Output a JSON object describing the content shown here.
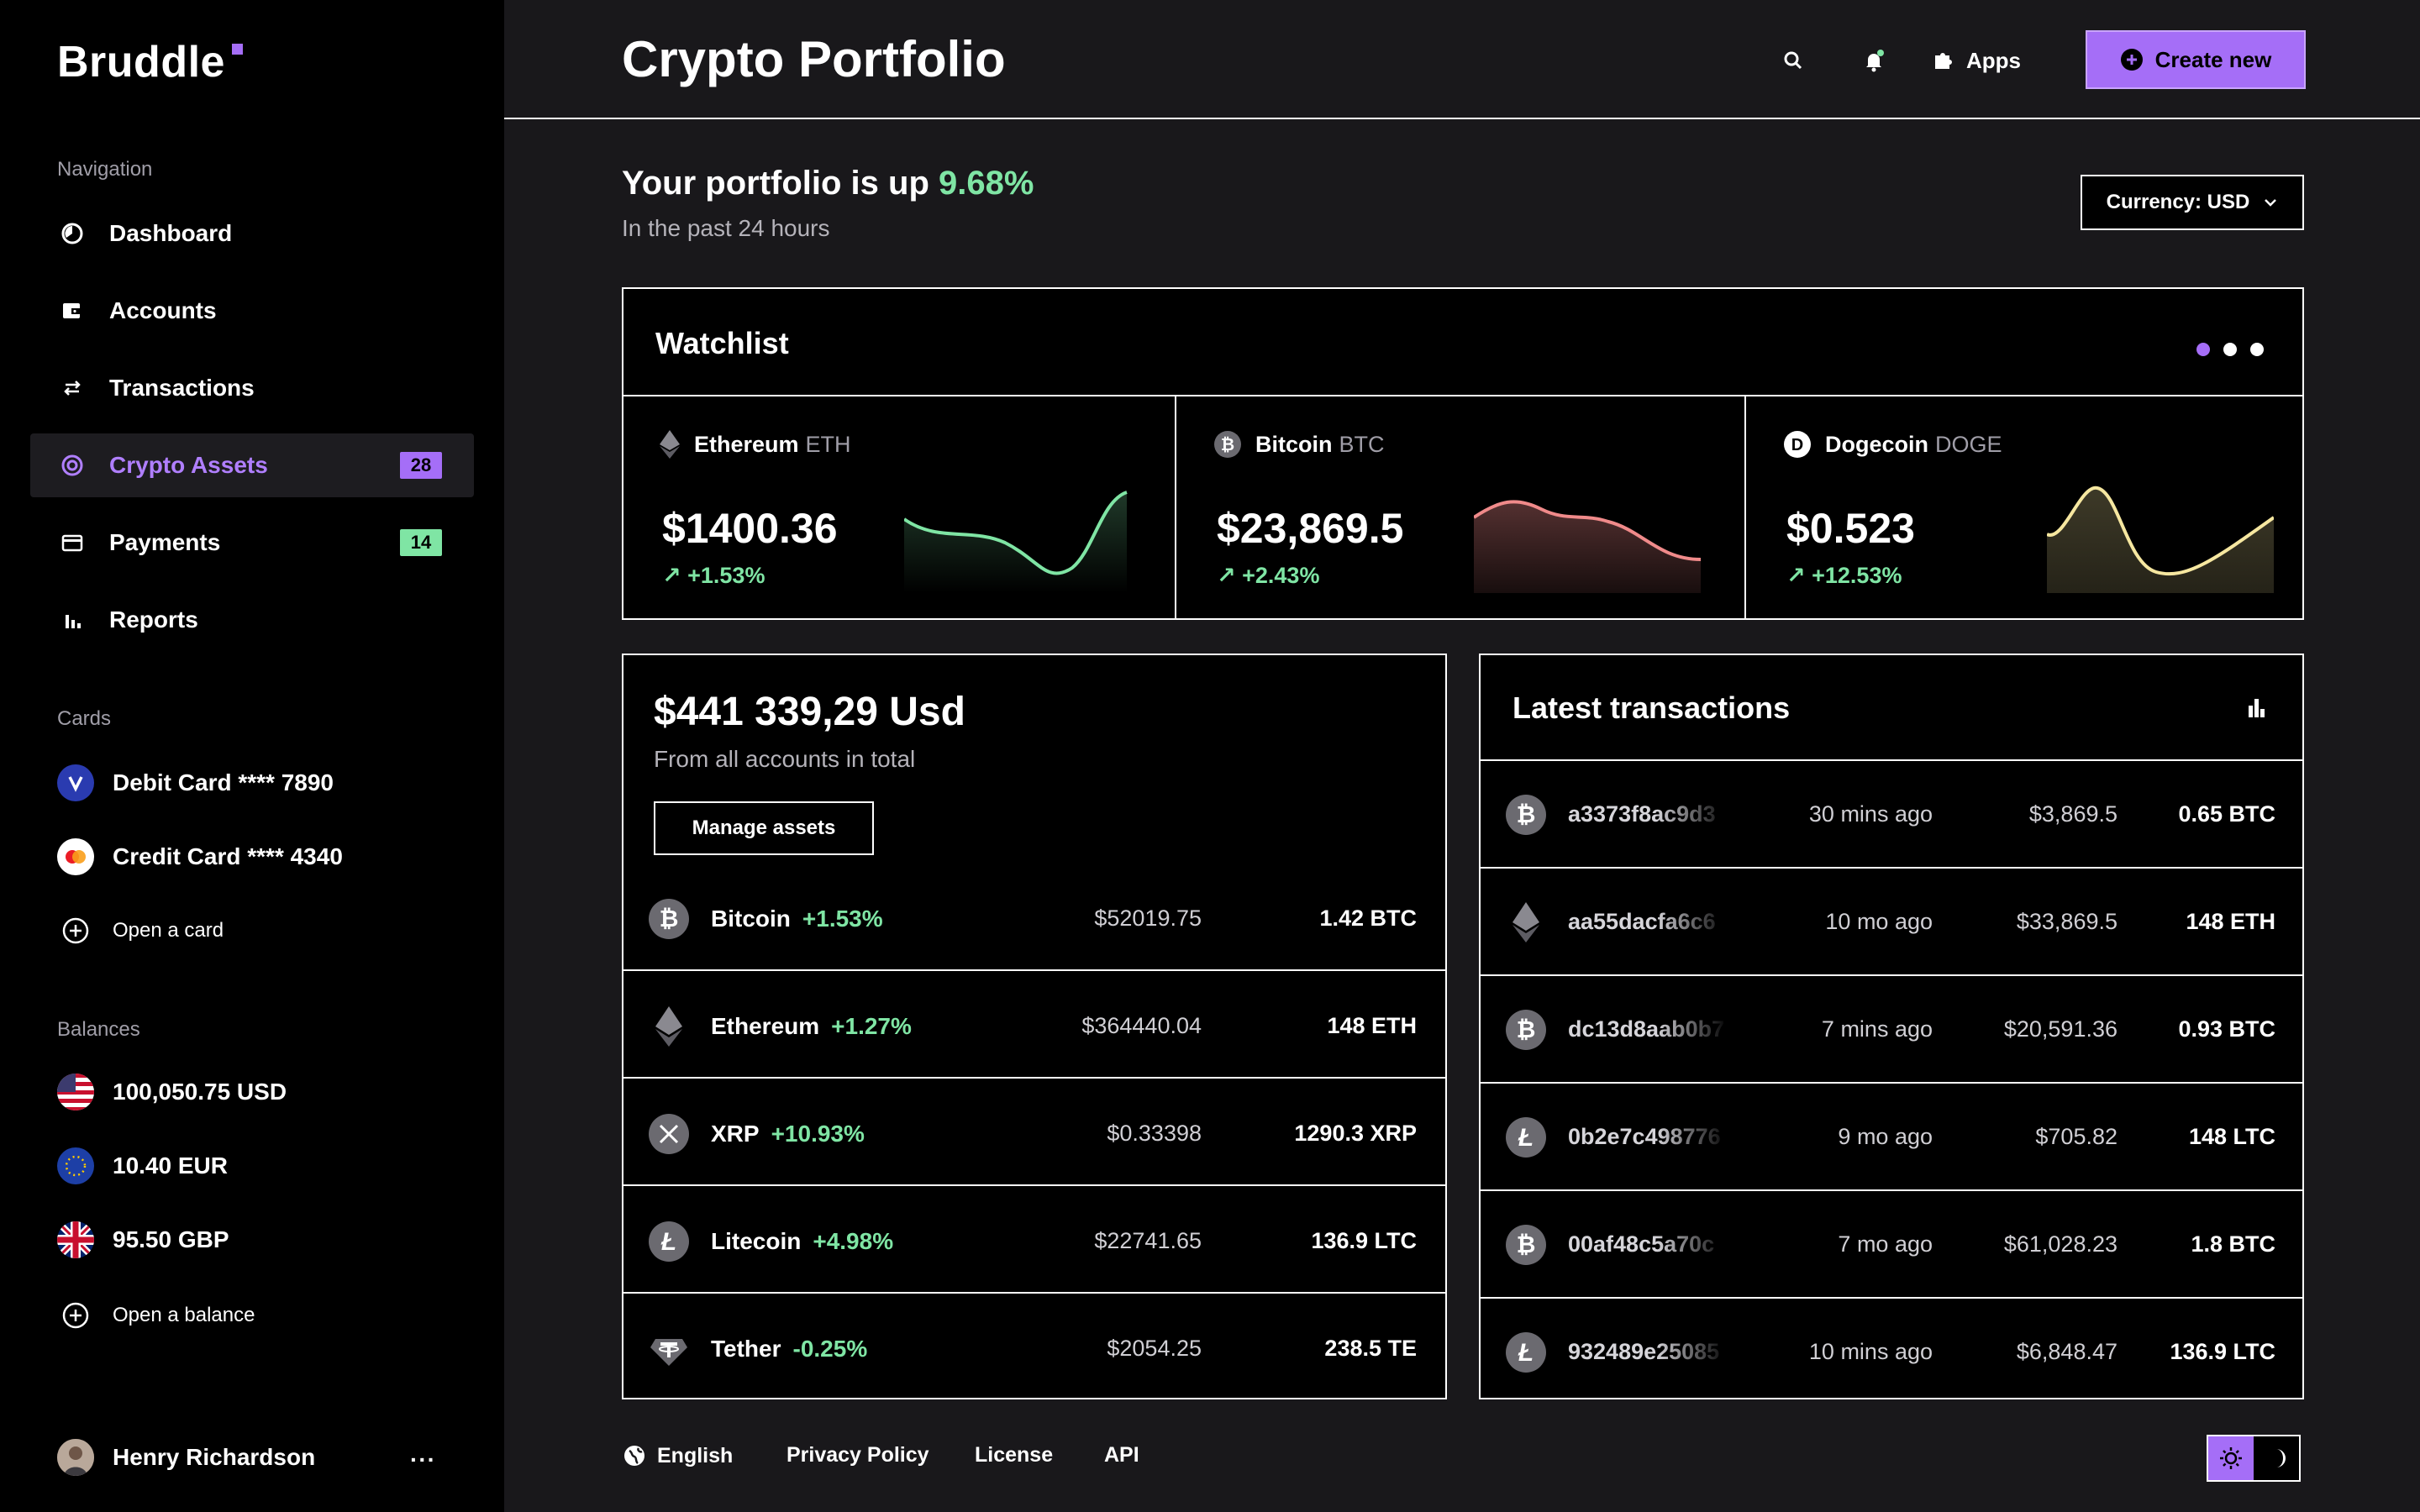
{
  "app": {
    "name": "Bruddle"
  },
  "sidebar": {
    "nav_label": "Navigation",
    "nav": [
      {
        "label": "Dashboard",
        "icon": "dashboard-icon"
      },
      {
        "label": "Accounts",
        "icon": "wallet-icon"
      },
      {
        "label": "Transactions",
        "icon": "arrows-exchange-icon"
      },
      {
        "label": "Crypto Assets",
        "icon": "crypto-icon",
        "badge": "28",
        "active": true
      },
      {
        "label": "Payments",
        "icon": "card-icon",
        "badge": "14"
      },
      {
        "label": "Reports",
        "icon": "bar-chart-icon"
      }
    ],
    "cards_label": "Cards",
    "cards": [
      {
        "label": "Debit Card **** 7890",
        "icon": "visa-icon"
      },
      {
        "label": "Credit Card **** 4340",
        "icon": "mastercard-icon"
      }
    ],
    "open_card": "Open a card",
    "balances_label": "Balances",
    "balances": [
      {
        "label": "100,050.75 USD",
        "icon": "us-flag-icon"
      },
      {
        "label": "10.40 EUR",
        "icon": "eu-flag-icon"
      },
      {
        "label": "95.50 GBP",
        "icon": "uk-flag-icon"
      }
    ],
    "open_balance": "Open a balance",
    "user": {
      "name": "Henry Richardson",
      "more": "···"
    }
  },
  "header": {
    "title": "Crypto Portfolio",
    "apps_label": "Apps",
    "create_label": "Create new"
  },
  "summary": {
    "headline": "Your portfolio is up",
    "change": "9.68%",
    "sub": "In the past 24 hours",
    "currency": "Currency: USD"
  },
  "watchlist": {
    "title": "Watchlist",
    "items": [
      {
        "name": "Ethereum",
        "symbol": "ETH",
        "price": "$1400.36",
        "change": "+1.53%",
        "color": "#7fe5a4"
      },
      {
        "name": "Bitcoin",
        "symbol": "BTC",
        "price": "$23,869.5",
        "change": "+2.43%",
        "color": "#f08a8a"
      },
      {
        "name": "Dogecoin",
        "symbol": "DOGE",
        "price": "$0.523",
        "change": "+12.53%",
        "color": "#f6e7a0"
      }
    ]
  },
  "assets": {
    "total": "$441 339,29 Usd",
    "total_sub": "From all accounts in total",
    "manage_label": "Manage assets",
    "rows": [
      {
        "name": "Bitcoin",
        "change": "+1.53%",
        "price": "$52019.75",
        "amount": "1.42 BTC",
        "icon": "bitcoin-icon"
      },
      {
        "name": "Ethereum",
        "change": "+1.27%",
        "price": "$364440.04",
        "amount": "148 ETH",
        "icon": "ethereum-icon"
      },
      {
        "name": "XRP",
        "change": "+10.93%",
        "price": "$0.33398",
        "amount": "1290.3 XRP",
        "icon": "xrp-icon"
      },
      {
        "name": "Litecoin",
        "change": "+4.98%",
        "price": "$22741.65",
        "amount": "136.9 LTC",
        "icon": "litecoin-icon"
      },
      {
        "name": "Tether",
        "change": "-0.25%",
        "price": "$2054.25",
        "amount": "238.5 TE",
        "icon": "tether-icon"
      }
    ]
  },
  "transactions": {
    "title": "Latest transactions",
    "rows": [
      {
        "hash": "a3373f8ac9d3",
        "time": "30 mins ago",
        "value": "$3,869.5",
        "amount": "0.65 BTC",
        "icon": "bitcoin-icon"
      },
      {
        "hash": "aa55dacfa6c6",
        "time": "10 mo ago",
        "value": "$33,869.5",
        "amount": "148 ETH",
        "icon": "ethereum-icon"
      },
      {
        "hash": "dc13d8aab0b7",
        "time": "7 mins ago",
        "value": "$20,591.36",
        "amount": "0.93 BTC",
        "icon": "bitcoin-icon"
      },
      {
        "hash": "0b2e7c498776",
        "time": "9 mo ago",
        "value": "$705.82",
        "amount": "148 LTC",
        "icon": "litecoin-icon"
      },
      {
        "hash": "00af48c5a70c",
        "time": "7 mo ago",
        "value": "$61,028.23",
        "amount": "1.8 BTC",
        "icon": "bitcoin-icon"
      },
      {
        "hash": "932489e25085",
        "time": "10 mins ago",
        "value": "$6,848.47",
        "amount": "136.9 LTC",
        "icon": "litecoin-icon"
      }
    ]
  },
  "footer": {
    "language": "English",
    "privacy": "Privacy Policy",
    "license": "License",
    "api": "API"
  },
  "colors": {
    "accent": "#a56ef7",
    "positive": "#7fe5a4",
    "badge_payments": "#7fe5a4"
  }
}
